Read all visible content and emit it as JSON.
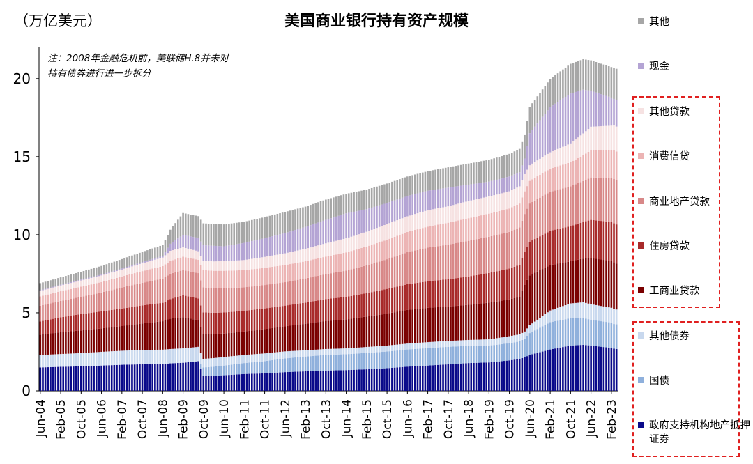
{
  "unit_label": "（万亿美元）",
  "title": "美国商业银行持有资产规模",
  "colors": {
    "gse_mbs": "#0a0a8a",
    "treasury": "#8fb0dc",
    "other_securities": "#c8d8ee",
    "ci_loans": "#7a0000",
    "residential": "#a82a2a",
    "cre": "#d88888",
    "consumer": "#ecb4b4",
    "other_loans": "#f6e2e2",
    "cash": "#b4a4d4",
    "other": "#a6a6a6",
    "box_border": "#e02020"
  },
  "legend": [
    {
      "key": "other",
      "label": "其他"
    },
    {
      "key": "cash",
      "label": "现金"
    },
    {
      "key": "other_loans",
      "label": "其他贷款"
    },
    {
      "key": "consumer",
      "label": "消费信贷"
    },
    {
      "key": "cre",
      "label": "商业地产贷款"
    },
    {
      "key": "residential",
      "label": "住房贷款"
    },
    {
      "key": "ci_loans",
      "label": "工商业贷款"
    },
    {
      "key": "other_securities",
      "label": "其他债券"
    },
    {
      "key": "treasury",
      "label": "国债"
    },
    {
      "key": "gse_mbs",
      "label": "政府支持机构地产抵押证券"
    }
  ],
  "chart_data": {
    "type": "bar",
    "stacked": true,
    "title": "美国商业银行持有资产规模",
    "ylabel": "万亿美元",
    "ylim": [
      0,
      22
    ],
    "yticks": [
      0,
      5,
      10,
      15,
      20
    ],
    "xticks": [
      "Jun-04",
      "Feb-05",
      "Oct-05",
      "Jun-06",
      "Feb-07",
      "Oct-07",
      "Jun-08",
      "Feb-09",
      "Oct-09",
      "Jun-10",
      "Feb-11",
      "Oct-11",
      "Jun-12",
      "Feb-13",
      "Oct-13",
      "Jun-14",
      "Feb-15",
      "Oct-15",
      "Jun-16",
      "Feb-17",
      "Oct-17",
      "Jun-18",
      "Feb-19",
      "Oct-19",
      "Jun-20",
      "Feb-21",
      "Oct-21",
      "Jun-22",
      "Feb-23"
    ],
    "annotation": [
      "注：2008年金融危机前，美联储H.8并未对",
      "持有债券进行进一步拆分"
    ],
    "stack_order": [
      "gse_mbs",
      "treasury",
      "other_securities",
      "ci_loans",
      "residential",
      "cre",
      "consumer",
      "other_loans",
      "cash",
      "other"
    ],
    "anchor_dates": [
      "Jun-04",
      "Feb-05",
      "Oct-05",
      "Jun-06",
      "Feb-07",
      "Oct-07",
      "Jun-08",
      "Sep-08",
      "Feb-09",
      "Aug-09",
      "Oct-09",
      "Feb-10",
      "Jun-10",
      "Feb-11",
      "Oct-11",
      "Jun-12",
      "Feb-13",
      "Oct-13",
      "Jun-14",
      "Feb-15",
      "Oct-15",
      "Jun-16",
      "Feb-17",
      "Oct-17",
      "Jun-18",
      "Feb-19",
      "Oct-19",
      "Feb-20",
      "Apr-20",
      "Jun-20",
      "Feb-21",
      "Oct-21",
      "Mar-22",
      "Jun-22",
      "Feb-23",
      "Mar-23",
      "Apr-23"
    ],
    "series": [
      {
        "key": "gse_mbs",
        "name": "政府支持机构地产抵押证券",
        "values": [
          1.5,
          1.54,
          1.57,
          1.62,
          1.67,
          1.7,
          1.72,
          1.76,
          1.8,
          1.9,
          0.95,
          0.97,
          1.0,
          1.08,
          1.12,
          1.2,
          1.25,
          1.3,
          1.33,
          1.38,
          1.45,
          1.55,
          1.62,
          1.7,
          1.78,
          1.82,
          1.95,
          2.05,
          2.15,
          2.3,
          2.65,
          2.9,
          2.95,
          2.9,
          2.75,
          2.7,
          2.68
        ]
      },
      {
        "key": "treasury",
        "name": "国债",
        "values": [
          0,
          0,
          0,
          0,
          0,
          0,
          0,
          0,
          0,
          0,
          0.55,
          0.58,
          0.62,
          0.7,
          0.78,
          0.88,
          0.95,
          1.0,
          1.02,
          1.05,
          1.07,
          1.1,
          1.12,
          1.12,
          1.1,
          1.08,
          1.1,
          1.12,
          1.2,
          1.4,
          1.75,
          1.75,
          1.72,
          1.65,
          1.62,
          1.58,
          1.58
        ]
      },
      {
        "key": "other_securities",
        "name": "其他债券",
        "values": [
          0.8,
          0.82,
          0.85,
          0.88,
          0.9,
          0.92,
          0.92,
          0.92,
          0.92,
          0.92,
          0.55,
          0.55,
          0.55,
          0.52,
          0.5,
          0.45,
          0.4,
          0.38,
          0.37,
          0.38,
          0.38,
          0.38,
          0.38,
          0.38,
          0.38,
          0.4,
          0.45,
          0.45,
          0.45,
          0.5,
          0.75,
          0.95,
          1.0,
          1.0,
          0.95,
          0.95,
          0.95
        ]
      },
      {
        "key": "ci_loans",
        "name": "工商业贷款",
        "values": [
          1.3,
          1.4,
          1.45,
          1.5,
          1.58,
          1.7,
          1.82,
          1.95,
          2.0,
          1.7,
          1.6,
          1.55,
          1.5,
          1.5,
          1.55,
          1.6,
          1.7,
          1.8,
          1.85,
          1.95,
          2.05,
          2.15,
          2.2,
          2.2,
          2.25,
          2.35,
          2.35,
          2.4,
          3.0,
          3.2,
          2.9,
          2.7,
          2.8,
          2.95,
          3.0,
          3.0,
          2.95
        ]
      },
      {
        "key": "residential",
        "name": "住房贷款",
        "values": [
          0.85,
          0.95,
          1.05,
          1.1,
          1.12,
          1.15,
          1.18,
          1.25,
          1.4,
          1.4,
          1.38,
          1.35,
          1.35,
          1.33,
          1.33,
          1.33,
          1.35,
          1.4,
          1.45,
          1.5,
          1.58,
          1.65,
          1.7,
          1.75,
          1.82,
          1.9,
          1.98,
          2.05,
          2.1,
          2.15,
          2.2,
          2.25,
          2.35,
          2.45,
          2.5,
          2.5,
          2.5
        ]
      },
      {
        "key": "cre",
        "name": "商业地产贷款",
        "values": [
          1.0,
          1.05,
          1.1,
          1.2,
          1.35,
          1.45,
          1.55,
          1.62,
          1.62,
          1.62,
          1.6,
          1.57,
          1.55,
          1.5,
          1.5,
          1.5,
          1.55,
          1.6,
          1.68,
          1.78,
          1.9,
          2.05,
          2.15,
          2.22,
          2.28,
          2.32,
          2.35,
          2.4,
          2.43,
          2.45,
          2.5,
          2.55,
          2.62,
          2.72,
          2.82,
          2.85,
          2.85
        ]
      },
      {
        "key": "consumer",
        "name": "消费信贷",
        "values": [
          0.6,
          0.62,
          0.65,
          0.67,
          0.7,
          0.75,
          0.8,
          0.82,
          0.85,
          0.85,
          1.1,
          1.12,
          1.12,
          1.1,
          1.1,
          1.1,
          1.1,
          1.12,
          1.17,
          1.2,
          1.25,
          1.3,
          1.35,
          1.4,
          1.45,
          1.48,
          1.5,
          1.53,
          1.45,
          1.45,
          1.48,
          1.55,
          1.65,
          1.75,
          1.8,
          1.82,
          1.82
        ]
      },
      {
        "key": "other_loans",
        "name": "其他贷款",
        "values": [
          0.35,
          0.37,
          0.4,
          0.42,
          0.45,
          0.5,
          0.55,
          0.65,
          0.6,
          0.55,
          0.6,
          0.6,
          0.62,
          0.65,
          0.7,
          0.75,
          0.8,
          0.85,
          0.9,
          0.95,
          1.0,
          1.0,
          1.05,
          1.05,
          1.1,
          1.1,
          1.1,
          1.1,
          1.1,
          1.0,
          1.05,
          1.2,
          1.4,
          1.5,
          1.55,
          1.6,
          1.6
        ]
      },
      {
        "key": "cash",
        "name": "现金",
        "values": [
          0.05,
          0.05,
          0.06,
          0.06,
          0.07,
          0.08,
          0.1,
          0.45,
          0.8,
          0.85,
          1.0,
          1.0,
          0.95,
          1.1,
          1.2,
          1.3,
          1.4,
          1.5,
          1.6,
          1.45,
          1.35,
          1.3,
          1.25,
          1.2,
          1.05,
          0.95,
          0.95,
          0.9,
          1.0,
          2.05,
          2.9,
          3.2,
          2.8,
          2.3,
          1.8,
          1.7,
          1.7
        ]
      },
      {
        "key": "other",
        "name": "其他",
        "values": [
          0.45,
          0.47,
          0.5,
          0.55,
          0.6,
          0.65,
          0.7,
          0.9,
          1.4,
          1.4,
          1.4,
          1.4,
          1.4,
          1.35,
          1.35,
          1.35,
          1.3,
          1.3,
          1.25,
          1.25,
          1.25,
          1.25,
          1.25,
          1.3,
          1.35,
          1.4,
          1.45,
          1.5,
          1.5,
          1.7,
          1.8,
          1.9,
          1.95,
          1.95,
          1.95,
          2.0,
          2.0
        ]
      }
    ]
  }
}
